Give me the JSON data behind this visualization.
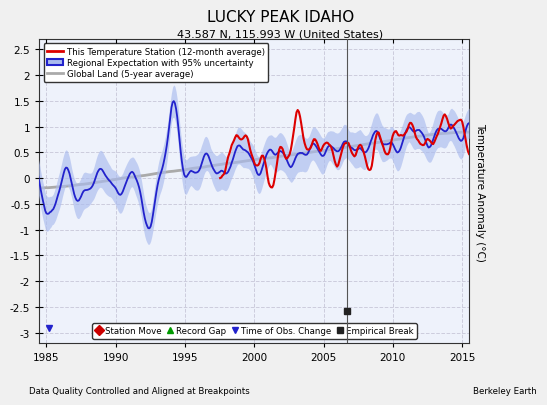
{
  "title": "LUCKY PEAK IDAHO",
  "subtitle": "43.587 N, 115.993 W (United States)",
  "ylabel": "Temperature Anomaly (°C)",
  "xlabel_left": "Data Quality Controlled and Aligned at Breakpoints",
  "xlabel_right": "Berkeley Earth",
  "xlim": [
    1984.5,
    2015.5
  ],
  "ylim": [
    -3.2,
    2.7
  ],
  "yticks": [
    -3,
    -2.5,
    -2,
    -1.5,
    -1,
    -0.5,
    0,
    0.5,
    1,
    1.5,
    2,
    2.5
  ],
  "xticks": [
    1985,
    1990,
    1995,
    2000,
    2005,
    2010,
    2015
  ],
  "bg_color": "#f0f0f0",
  "plot_bg_color": "#eef2fb",
  "grid_color": "#ccccdd",
  "station_color": "#dd0000",
  "regional_color": "#2222cc",
  "regional_fill_color": "#aabbee",
  "global_color": "#aaaaaa",
  "marker_items": [
    {
      "label": "Station Move",
      "color": "#cc0000",
      "marker": "D"
    },
    {
      "label": "Record Gap",
      "color": "#009900",
      "marker": "^"
    },
    {
      "label": "Time of Obs. Change",
      "color": "#2222cc",
      "marker": "v"
    },
    {
      "label": "Empirical Break",
      "color": "#222222",
      "marker": "s"
    }
  ],
  "empirical_break_x": 2006.7,
  "empirical_break_y": -2.57,
  "obs_change_x": 1985.2,
  "obs_change_y": -2.9,
  "station_start_year": 1997.5
}
